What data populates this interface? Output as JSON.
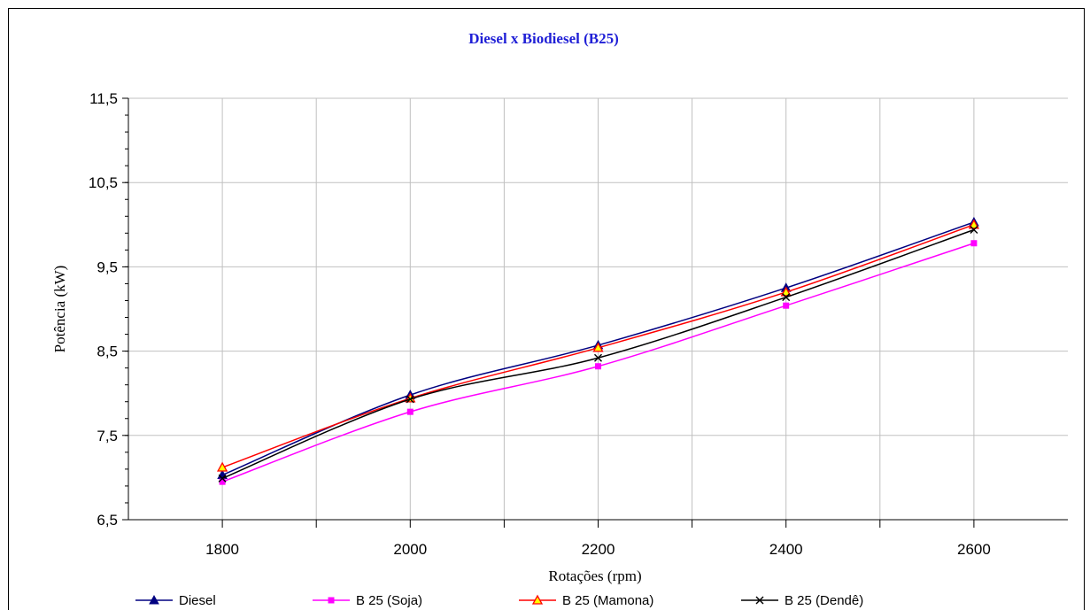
{
  "chart_data": {
    "type": "line",
    "title": "Diesel x Biodiesel (B25)",
    "xlabel": "Rotações (rpm)",
    "ylabel": "Potência (kW)",
    "x_range": [
      1700,
      2700
    ],
    "x_ticks": [
      1800,
      2000,
      2200,
      2400,
      2600
    ],
    "x_tick_labels": [
      "1800",
      "2000",
      "2200",
      "2400",
      "2600"
    ],
    "ylim": [
      6.5,
      11.5
    ],
    "y_ticks": [
      6.5,
      7.5,
      8.5,
      9.5,
      10.5,
      11.5
    ],
    "y_tick_labels": [
      "6,5",
      "7,5",
      "8,5",
      "9,5",
      "10,5",
      "11,5"
    ],
    "grid": true,
    "legend_position": "bottom",
    "series": [
      {
        "name": "Diesel",
        "color": "#000080",
        "marker": "triangle-filled",
        "x": [
          1800,
          2000,
          2200,
          2400,
          2600
        ],
        "values": [
          7.03,
          7.98,
          8.57,
          9.25,
          10.03
        ]
      },
      {
        "name": "B 25 (Soja)",
        "color": "#ff00ff",
        "marker": "square",
        "x": [
          1800,
          2000,
          2200,
          2400,
          2600
        ],
        "values": [
          6.95,
          7.78,
          8.32,
          9.04,
          9.78
        ]
      },
      {
        "name": "B 25 (Mamona)",
        "color": "#ff0000",
        "marker": "triangle-open",
        "x": [
          1800,
          2000,
          2200,
          2400,
          2600
        ],
        "values": [
          7.12,
          7.94,
          8.54,
          9.2,
          10.0
        ]
      },
      {
        "name": "B 25 (Dendê)",
        "color": "#000000",
        "marker": "x",
        "x": [
          1800,
          2000,
          2200,
          2400,
          2600
        ],
        "values": [
          6.99,
          7.93,
          8.42,
          9.14,
          9.94
        ]
      }
    ]
  }
}
